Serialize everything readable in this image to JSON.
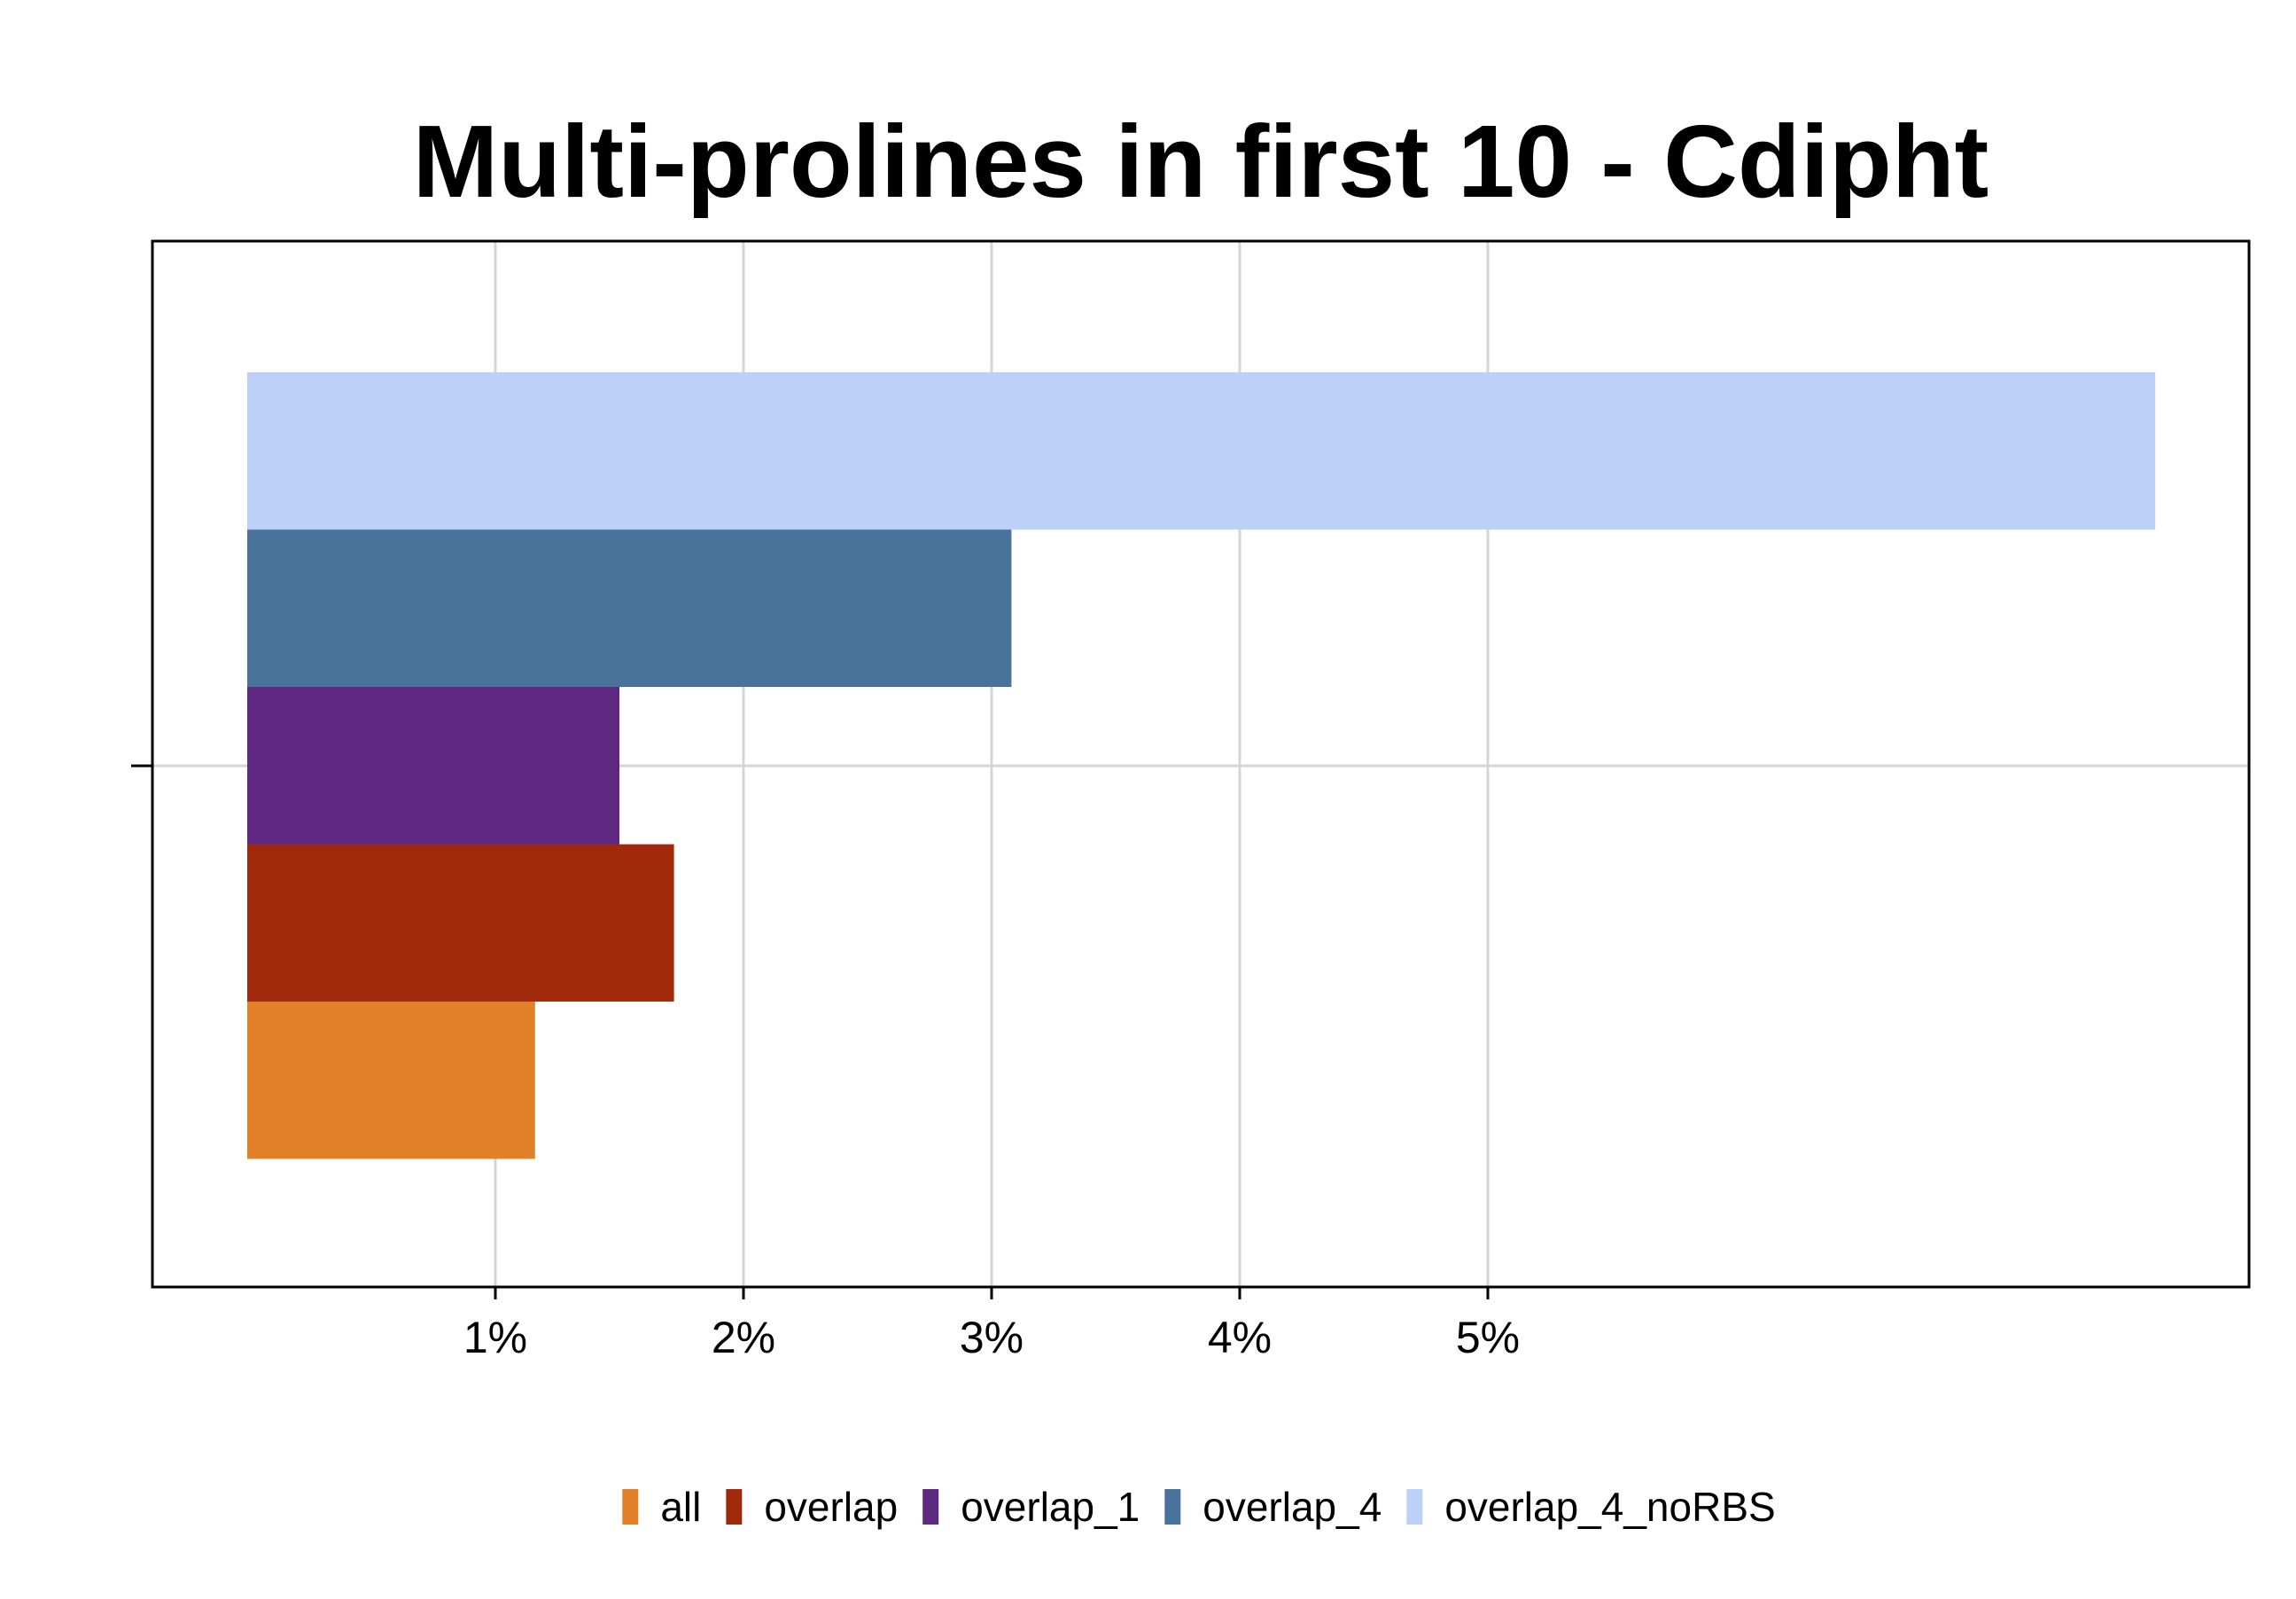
{
  "chart_data": {
    "type": "bar",
    "orientation": "horizontal",
    "title": "Multi-prolines in first 10 - Cdipht",
    "xlabel": "",
    "ylabel": "",
    "x_ticks": [
      {
        "value": 1,
        "label": "1%"
      },
      {
        "value": 2,
        "label": "2%"
      },
      {
        "value": 3,
        "label": "3%"
      },
      {
        "value": 4,
        "label": "4%"
      },
      {
        "value": 5,
        "label": "5%"
      }
    ],
    "xlim": [
      -0.38,
      8.07
    ],
    "grid": true,
    "legend_position": "bottom",
    "series": [
      {
        "name": "all",
        "value": 1.16,
        "color": "#e2812a"
      },
      {
        "name": "overlap",
        "value": 1.72,
        "color": "#a1290b"
      },
      {
        "name": "overlap_1",
        "value": 1.5,
        "color": "#5e2880"
      },
      {
        "name": "overlap_4",
        "value": 3.08,
        "color": "#4a739b"
      },
      {
        "name": "overlap_4_noRBS",
        "value": 7.69,
        "color": "#bdd0f8"
      }
    ]
  }
}
